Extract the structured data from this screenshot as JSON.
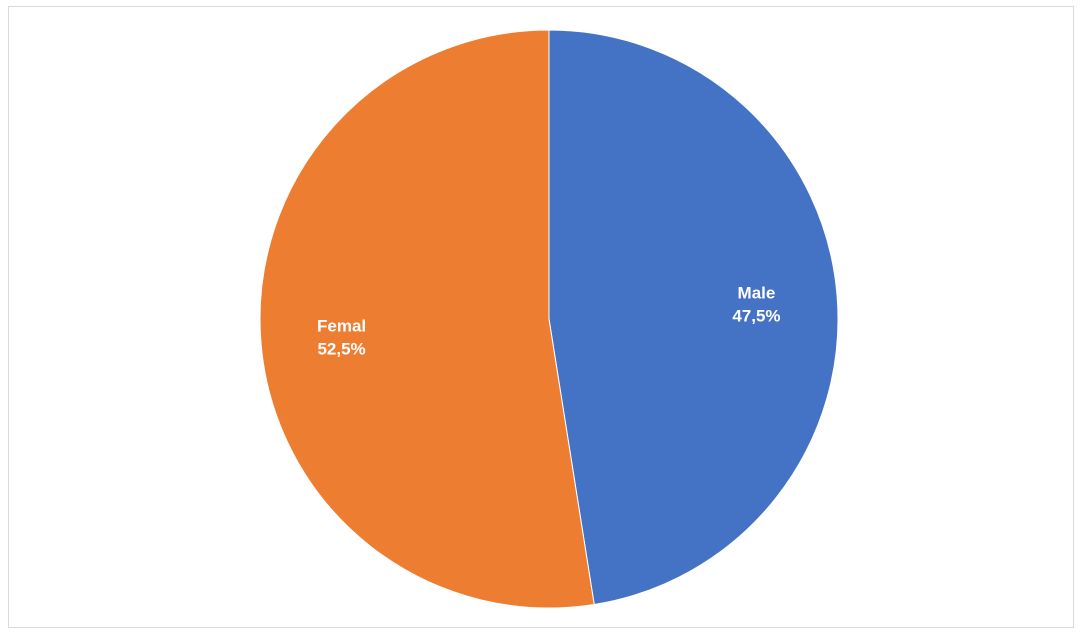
{
  "chart_data": {
    "type": "pie",
    "title": "",
    "slices": [
      {
        "label": "Male",
        "value": 47.5,
        "display": "47,5%",
        "color": "#4472C4"
      },
      {
        "label": "Femal",
        "value": 52.5,
        "display": "52,5%",
        "color": "#ED7D31"
      }
    ],
    "start_angle_deg": 0,
    "direction": "clockwise",
    "legend": "none",
    "data_labels": "inside"
  }
}
